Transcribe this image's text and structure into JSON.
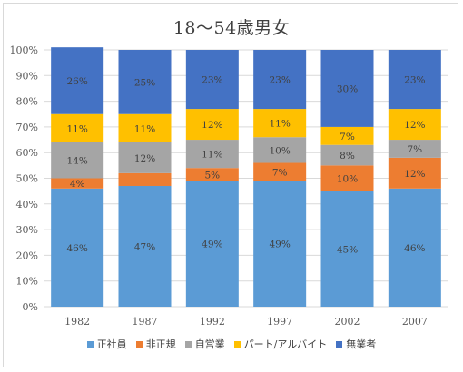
{
  "chart_data": {
    "type": "bar",
    "stacked": true,
    "percent": true,
    "title": "18～54歳男女",
    "categories": [
      "1982",
      "1987",
      "1992",
      "1997",
      "2002",
      "2007"
    ],
    "y_ticks": [
      "0%",
      "10%",
      "20%",
      "30%",
      "40%",
      "50%",
      "60%",
      "70%",
      "80%",
      "90%",
      "100%"
    ],
    "ylim": [
      0,
      100
    ],
    "grid": true,
    "legend_position": "bottom",
    "series": [
      {
        "name": "正社員",
        "color": "#5b9bd5",
        "values": [
          46,
          47,
          49,
          49,
          45,
          46
        ],
        "labels": [
          "46%",
          "47%",
          "49%",
          "49%",
          "45%",
          "46%"
        ]
      },
      {
        "name": "非正規",
        "color": "#ed7d31",
        "values": [
          4,
          5,
          5,
          7,
          10,
          12
        ],
        "labels": [
          "4%",
          "",
          "5%",
          "7%",
          "10%",
          "12%"
        ]
      },
      {
        "name": "自営業",
        "color": "#a5a5a5",
        "values": [
          14,
          12,
          11,
          10,
          8,
          7
        ],
        "labels": [
          "14%",
          "12%",
          "11%",
          "10%",
          "8%",
          "7%"
        ]
      },
      {
        "name": "パート/アルバイト",
        "color": "#ffc000",
        "values": [
          11,
          11,
          12,
          11,
          7,
          12
        ],
        "labels": [
          "11%",
          "11%",
          "12%",
          "11%",
          "7%",
          "12%"
        ]
      },
      {
        "name": "無業者",
        "color": "#4472c4",
        "values": [
          26,
          25,
          23,
          23,
          30,
          23
        ],
        "labels": [
          "26%",
          "25%",
          "23%",
          "23%",
          "30%",
          "23%"
        ]
      }
    ]
  }
}
